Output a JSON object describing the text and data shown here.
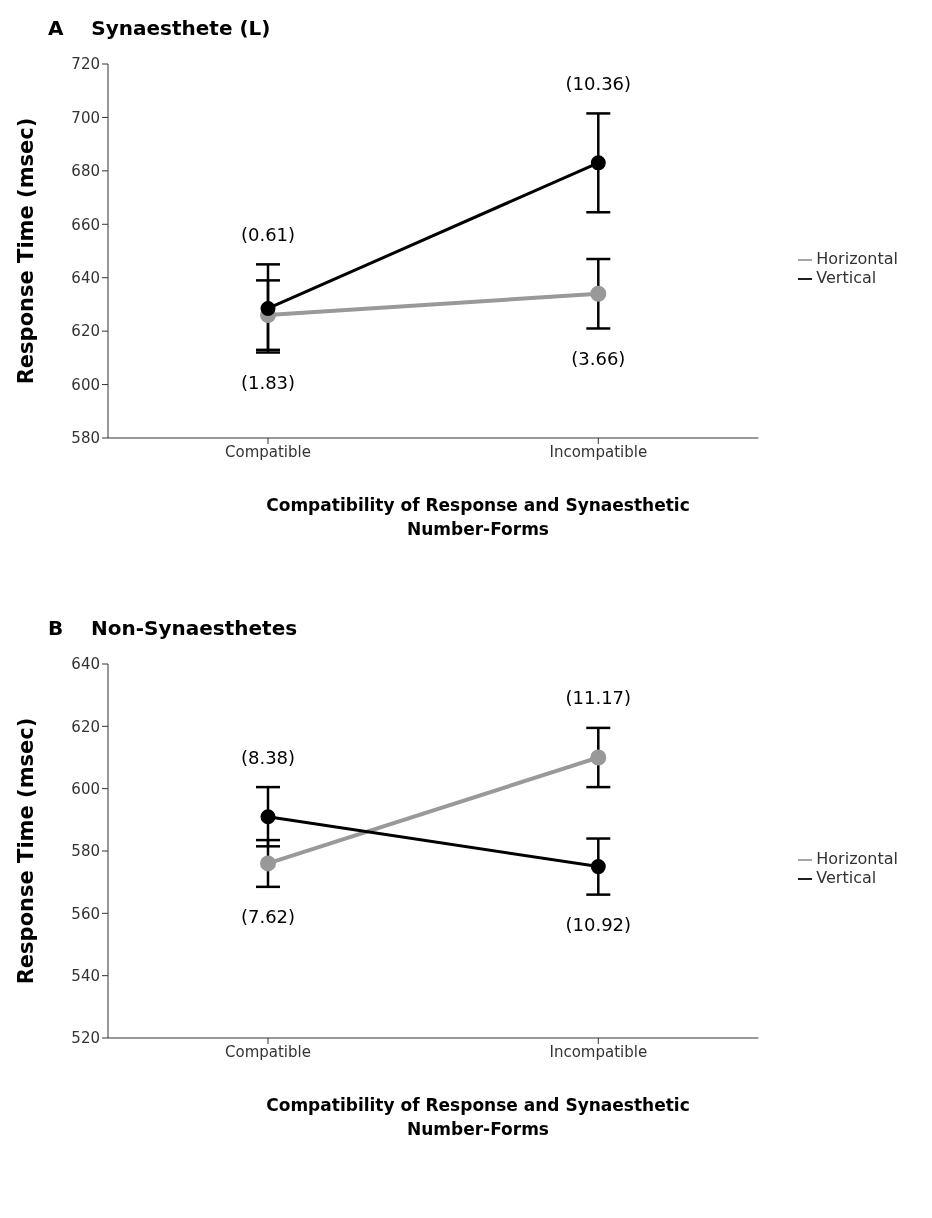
{
  "chart_data": [
    {
      "type": "line",
      "title": "A    Synaesthete (L)",
      "xlabel": "Compatibility of Response and Synaesthetic Number-Forms",
      "ylabel": "Response Time (msec)",
      "categories": [
        "Compatible",
        "Incompatible"
      ],
      "series": [
        {
          "name": "Horizontal",
          "color": "#999999",
          "values": [
            626,
            634
          ],
          "errors": [
            13,
            13
          ]
        },
        {
          "name": "Vertical",
          "color": "#000000",
          "values": [
            628.5,
            683
          ],
          "errors": [
            16.5,
            18.5
          ]
        }
      ],
      "ylim": [
        580,
        720
      ],
      "yticks": [
        580,
        600,
        620,
        640,
        660,
        680,
        700,
        720
      ],
      "grid": false,
      "legend": "right",
      "marker": "circle",
      "line_style": "solid",
      "annotations": [
        "(0.61)",
        "(1.83)",
        "(10.36)",
        "(3.66)"
      ]
    },
    {
      "type": "line",
      "title": "B    Non-Synaesthetes",
      "xlabel": "Compatibility of Response and Synaesthetic Number-Forms",
      "ylabel": "Response Time (msec)",
      "categories": [
        "Compatible",
        "Incompatible"
      ],
      "series": [
        {
          "name": "Horizontal",
          "color": "#999999",
          "values": [
            576,
            610
          ],
          "errors": [
            7.5,
            9.5
          ]
        },
        {
          "name": "Vertical",
          "color": "#000000",
          "values": [
            591,
            575
          ],
          "errors": [
            9.5,
            9
          ]
        }
      ],
      "ylim": [
        520,
        640
      ],
      "yticks": [
        520,
        540,
        560,
        580,
        600,
        620,
        640
      ],
      "grid": false,
      "legend": "right",
      "marker": "circle",
      "line_style": "solid",
      "annotations": [
        "(8.38)",
        "(7.62)",
        "(11.17)",
        "(10.92)"
      ]
    }
  ]
}
